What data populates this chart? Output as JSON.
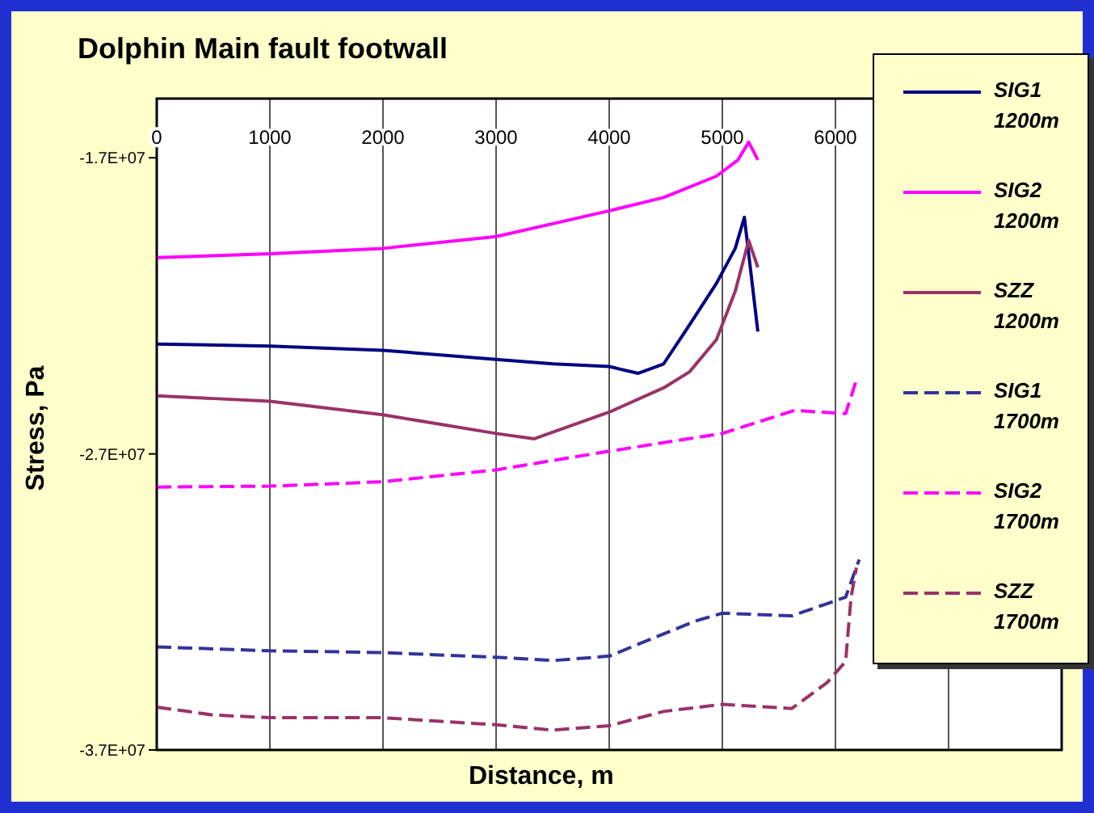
{
  "chart_data": {
    "type": "line",
    "title": "Dolphin Main fault footwall",
    "xlabel": "Distance, m",
    "ylabel": "Stress, Pa",
    "xlim": [
      0,
      8000
    ],
    "xticks": [
      0,
      1000,
      2000,
      3000,
      4000,
      5000,
      6000,
      {
        "value": 7000,
        "label": null
      }
    ],
    "ylim": [
      -37000000,
      -15000000
    ],
    "yticks": [
      {
        "value": -17000000,
        "label": "-1.7E+07"
      },
      {
        "value": -27000000,
        "label": "-2.7E+07"
      },
      {
        "value": -37000000,
        "label": "-3.7E+07"
      }
    ],
    "grid": "x",
    "legend": "right",
    "marker": "none",
    "series": [
      {
        "name": "SIG1 1200m",
        "color": "#000080",
        "line_style": "solid",
        "x": [
          0,
          1000,
          2000,
          3000,
          3505,
          4000,
          4257,
          4481,
          4686,
          4948,
          5114,
          5195,
          5314
        ],
        "values": [
          -23290000,
          -23360000,
          -23500000,
          -23810000,
          -23960000,
          -24050000,
          -24280000,
          -23960000,
          -22780000,
          -21240000,
          -20060000,
          -19010000,
          -22870000
        ]
      },
      {
        "name": "SIG2 1200m",
        "color": "#ff00ff",
        "line_style": "solid",
        "x": [
          0,
          1000,
          2000,
          3000,
          4000,
          4481,
          4948,
          5139,
          5233,
          5314
        ],
        "values": [
          -20370000,
          -20240000,
          -20060000,
          -19660000,
          -18790000,
          -18340000,
          -17620000,
          -17070000,
          -16470000,
          -17070000
        ]
      },
      {
        "name": "SZZ 1200m",
        "color": "#993366",
        "line_style": "solid",
        "x": [
          0,
          505,
          1000,
          2000,
          3000,
          3338,
          4000,
          4481,
          4710,
          4948,
          5114,
          5233,
          5314
        ],
        "values": [
          -25040000,
          -25130000,
          -25220000,
          -25680000,
          -26310000,
          -26490000,
          -25590000,
          -24770000,
          -24230000,
          -23140000,
          -21510000,
          -19790000,
          -20700000
        ]
      },
      {
        "name": "SIG1 1700m",
        "color": "#333399",
        "line_style": "dashed",
        "x": [
          0,
          1000,
          2000,
          3000,
          3505,
          4000,
          4757,
          5000,
          5614,
          6090,
          6210
        ],
        "values": [
          -33520000,
          -33650000,
          -33710000,
          -33870000,
          -33980000,
          -33830000,
          -32650000,
          -32380000,
          -32470000,
          -31840000,
          -30570000
        ]
      },
      {
        "name": "SIG2 1700m",
        "color": "#ff00ff",
        "line_style": "dashed",
        "x": [
          0,
          1000,
          2000,
          3000,
          4000,
          5000,
          5638,
          6090,
          6186
        ],
        "values": [
          -28120000,
          -28090000,
          -27940000,
          -27540000,
          -26910000,
          -26310000,
          -25530000,
          -25640000,
          -24500000
        ]
      },
      {
        "name": "SZZ 1700m",
        "color": "#993366",
        "line_style": "dashed",
        "x": [
          0,
          500,
          1000,
          2000,
          3000,
          3500,
          4000,
          4481,
          5000,
          5614,
          5924,
          6090,
          6138,
          6186
        ],
        "values": [
          -35550000,
          -35820000,
          -35910000,
          -35910000,
          -36150000,
          -36330000,
          -36180000,
          -35700000,
          -35460000,
          -35600000,
          -34730000,
          -34010000,
          -31840000,
          -30840000
        ]
      }
    ]
  }
}
